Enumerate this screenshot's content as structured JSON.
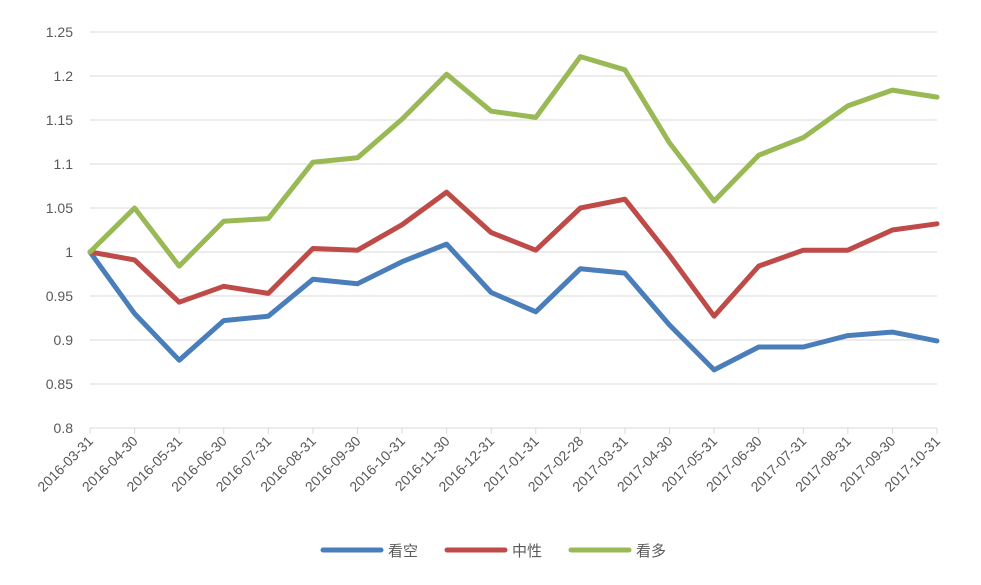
{
  "chart_data": {
    "type": "line",
    "title": "",
    "xlabel": "",
    "ylabel": "",
    "ylim": [
      0.8,
      1.25
    ],
    "y_ticks": [
      0.8,
      0.85,
      0.9,
      0.95,
      1,
      1.05,
      1.1,
      1.15,
      1.2,
      1.25
    ],
    "y_tick_labels": [
      "0.8",
      "0.85",
      "0.9",
      "0.95",
      "1",
      "1.05",
      "1.1",
      "1.15",
      "1.2",
      "1.25"
    ],
    "grid": true,
    "legend_position": "bottom",
    "categories": [
      "2016-03-31",
      "2016-04-30",
      "2016-05-31",
      "2016-06-30",
      "2016-07-31",
      "2016-08-31",
      "2016-09-30",
      "2016-10-31",
      "2016-11-30",
      "2016-12-31",
      "2017-01-31",
      "2017-02-28",
      "2017-03-31",
      "2017-04-30",
      "2017-05-31",
      "2017-06-30",
      "2017-07-31",
      "2017-08-31",
      "2017-09-30",
      "2017-10-31"
    ],
    "series": [
      {
        "name": "看空",
        "color": "#4a7ebb",
        "values": [
          1.0,
          0.93,
          0.877,
          0.922,
          0.927,
          0.969,
          0.964,
          0.989,
          1.009,
          0.954,
          0.932,
          0.981,
          0.976,
          0.917,
          0.866,
          0.892,
          0.892,
          0.905,
          0.909,
          0.899
        ]
      },
      {
        "name": "中性",
        "color": "#be4b48",
        "values": [
          1.0,
          0.991,
          0.943,
          0.961,
          0.953,
          1.004,
          1.002,
          1.031,
          1.068,
          1.022,
          1.002,
          1.05,
          1.06,
          0.996,
          0.927,
          0.984,
          1.002,
          1.002,
          1.025,
          1.032
        ]
      },
      {
        "name": "看多",
        "color": "#98b954",
        "values": [
          1.0,
          1.05,
          0.984,
          1.035,
          1.038,
          1.102,
          1.107,
          1.151,
          1.202,
          1.16,
          1.153,
          1.222,
          1.207,
          1.124,
          1.058,
          1.11,
          1.13,
          1.166,
          1.184,
          1.176
        ]
      }
    ]
  }
}
